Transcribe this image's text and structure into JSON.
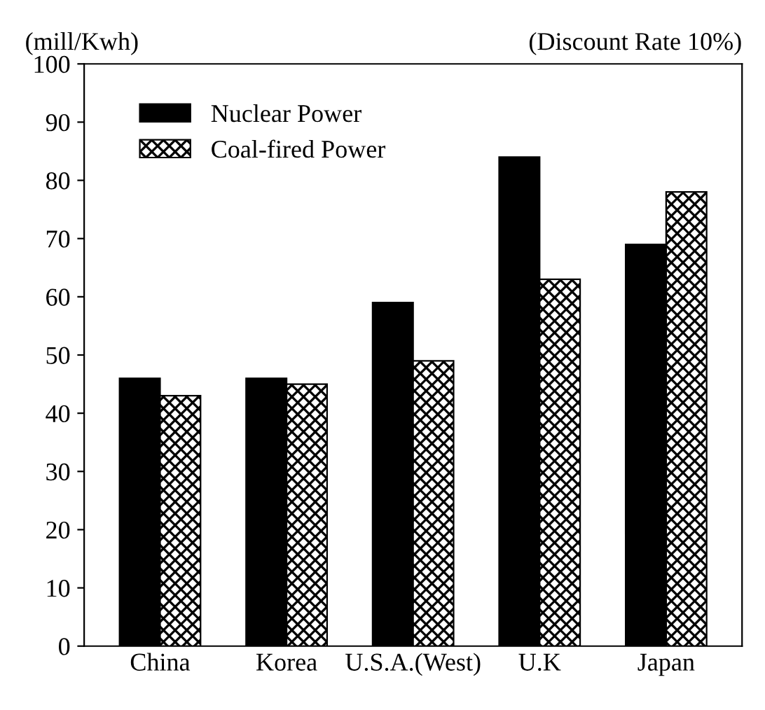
{
  "chart_data": {
    "type": "bar",
    "title": "(Discount Rate 10%)",
    "ylabel": "(mill/Kwh)",
    "categories": [
      "China",
      "Korea",
      "U.S.A.(West)",
      "U.K",
      "Japan"
    ],
    "series": [
      {
        "name": "Nuclear Power",
        "color": "#000000",
        "values": [
          46,
          46,
          59,
          84,
          69
        ]
      },
      {
        "name": "Coal-fired Power",
        "color": "#000000",
        "values": [
          43,
          45,
          49,
          63,
          78
        ]
      }
    ],
    "ylim": [
      0,
      100
    ],
    "yticks": [
      0,
      10,
      20,
      30,
      40,
      50,
      60,
      70,
      80,
      90,
      100
    ],
    "grid": false,
    "legend": "top left"
  }
}
